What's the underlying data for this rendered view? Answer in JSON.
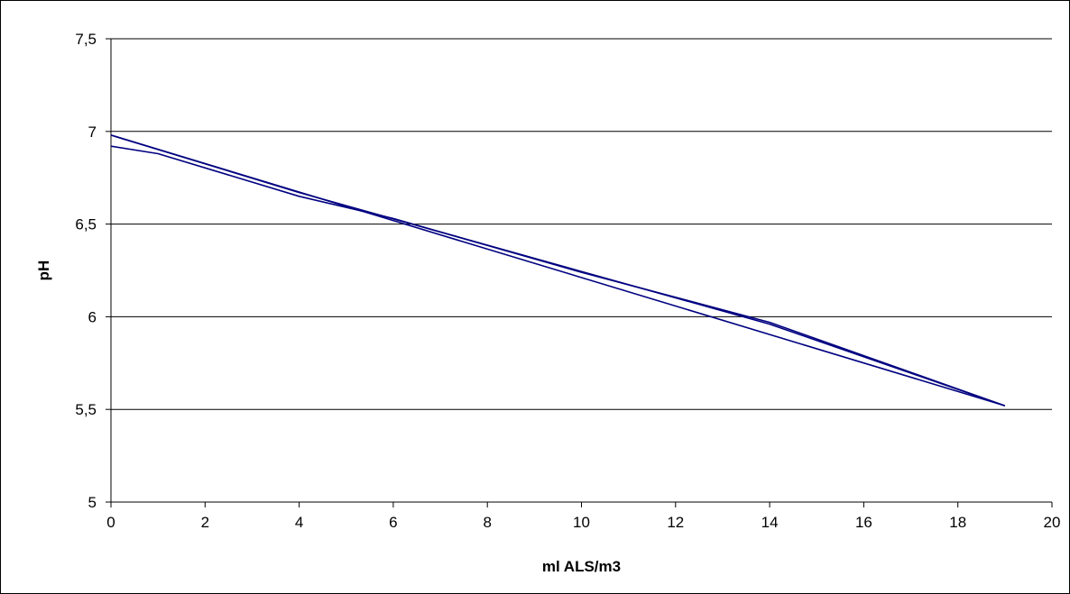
{
  "chart_data": {
    "type": "line",
    "title": "",
    "xlabel": "ml ALS/m3",
    "ylabel": "pH",
    "xlim": [
      0,
      20
    ],
    "ylim": [
      5,
      7.5
    ],
    "xticks": [
      0,
      2,
      4,
      6,
      8,
      10,
      12,
      14,
      16,
      18,
      20
    ],
    "yticks": [
      5,
      5.5,
      6,
      6.5,
      7,
      7.5
    ],
    "xtick_labels": [
      "0",
      "2",
      "4",
      "6",
      "8",
      "10",
      "12",
      "14",
      "16",
      "18",
      "20"
    ],
    "ytick_labels": [
      "5",
      "5,5",
      "6",
      "6,5",
      "7",
      "7,5"
    ],
    "grid": "horizontal",
    "legend": "none",
    "series_color": "#000080",
    "series": [
      {
        "x": [
          0,
          19
        ],
        "y": [
          6.98,
          5.52
        ]
      },
      {
        "x": [
          0,
          1,
          4,
          6,
          10,
          14,
          19
        ],
        "y": [
          6.92,
          6.88,
          6.65,
          6.53,
          6.24,
          5.97,
          5.52
        ]
      },
      {
        "x": [
          0,
          4,
          14,
          19
        ],
        "y": [
          6.98,
          6.67,
          5.96,
          5.52
        ]
      }
    ]
  }
}
